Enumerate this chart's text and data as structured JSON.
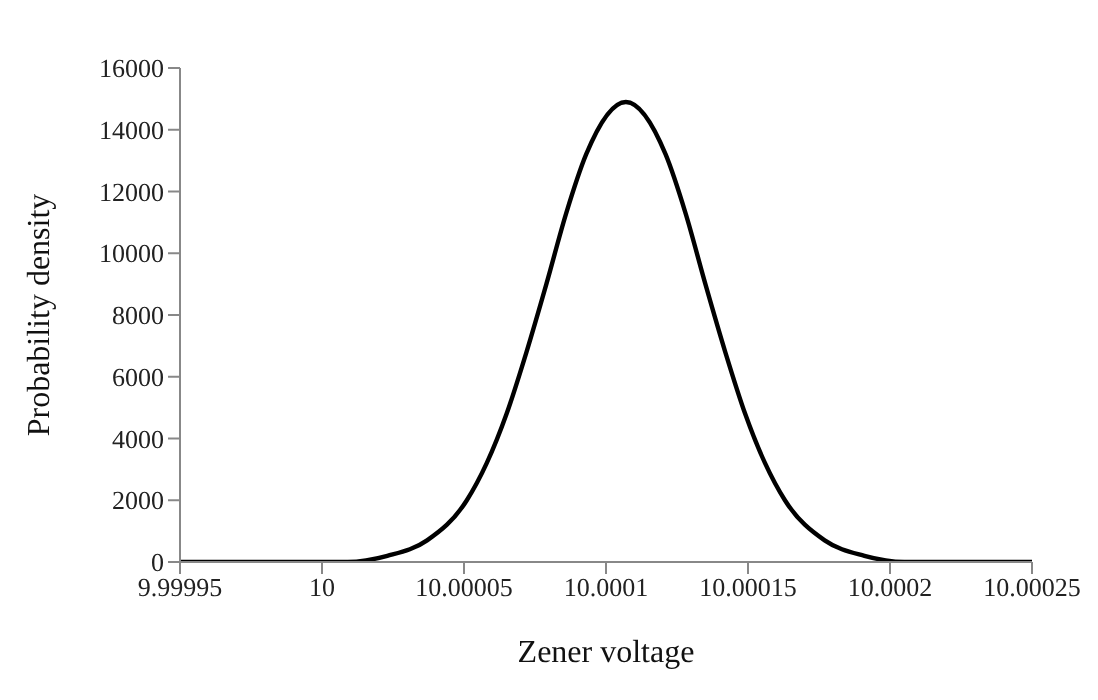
{
  "chart_data": {
    "type": "line",
    "xlabel": "Zener voltage",
    "ylabel": "Probability density",
    "x": [
      9.99995,
      9.999995,
      10.000009,
      10.000023,
      10.000037,
      10.000051,
      10.000058,
      10.000065,
      10.000072,
      10.000079,
      10.000086,
      10.000093,
      10.000107,
      10.000121,
      10.000128,
      10.000135,
      10.000142,
      10.000149,
      10.000156,
      10.000163,
      10.000177,
      10.000191,
      10.000205,
      10.000219,
      10.00025
    ],
    "series": [
      {
        "color": "#000000",
        "values": [
          0,
          0,
          0,
          200,
          700,
          2000,
          3200,
          4800,
          6800,
          9000,
          11300,
          13200,
          14900,
          13200,
          11300,
          9000,
          6800,
          4800,
          3200,
          2000,
          700,
          200,
          0,
          0,
          0
        ]
      }
    ],
    "xlim": [
      9.99995,
      10.00025
    ],
    "xticks": [
      9.99995,
      10,
      10.00005,
      10.0001,
      10.00015,
      10.0002,
      10.00025
    ],
    "ylim": [
      0,
      16000
    ],
    "yticks": [
      0,
      2000,
      4000,
      6000,
      8000,
      10000,
      12000,
      14000,
      16000
    ],
    "grid": false,
    "legend": false,
    "marker": "none",
    "line_style": "solid"
  }
}
